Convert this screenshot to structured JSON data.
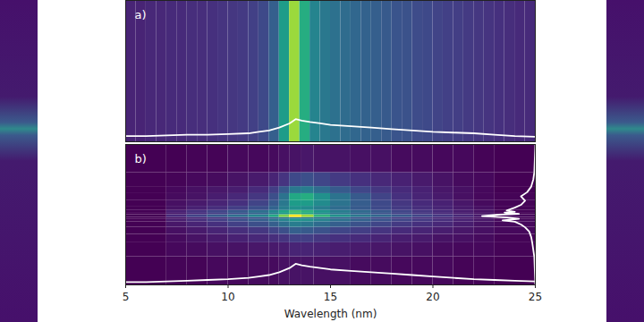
{
  "chart_data": [
    {
      "type": "heatmap",
      "title": "a)",
      "color": "viridis",
      "clim": [
        0,
        1
      ],
      "xlim": [
        5,
        25
      ],
      "ylim": [
        0,
        1
      ],
      "tick_labels": false,
      "bins": [
        5,
        5.5,
        6,
        6.5,
        7,
        7.5,
        8,
        8.5,
        9,
        9.5,
        10,
        10.5,
        11,
        11.5,
        12,
        12.5,
        13,
        13.5,
        14,
        14.5,
        15,
        15.5,
        16,
        16.5,
        17,
        17.5,
        18,
        18.5,
        19,
        19.5,
        20,
        20.5,
        21,
        21.5,
        22,
        22.5,
        23,
        23.5,
        24,
        24.5,
        25
      ],
      "cells": [
        0.1,
        0.1,
        0.11,
        0.11,
        0.12,
        0.12,
        0.13,
        0.13,
        0.14,
        0.15,
        0.16,
        0.17,
        0.19,
        0.22,
        0.3,
        0.55,
        0.85,
        0.62,
        0.45,
        0.4,
        0.37,
        0.35,
        0.33,
        0.31,
        0.3,
        0.28,
        0.26,
        0.25,
        0.23,
        0.22,
        0.2,
        0.19,
        0.18,
        0.17,
        0.16,
        0.15,
        0.14,
        0.13,
        0.12,
        0.12
      ],
      "lineout": {
        "color": "white",
        "x": [
          5,
          6,
          7,
          8,
          9,
          10,
          11,
          11.5,
          12,
          12.5,
          13,
          13.3,
          13.6,
          14,
          14.5,
          15,
          16,
          17,
          18,
          19,
          20,
          21,
          22,
          23,
          24,
          25
        ],
        "values": [
          0.04,
          0.04,
          0.045,
          0.05,
          0.05,
          0.055,
          0.06,
          0.07,
          0.08,
          0.1,
          0.13,
          0.16,
          0.15,
          0.14,
          0.13,
          0.12,
          0.11,
          0.1,
          0.09,
          0.08,
          0.07,
          0.065,
          0.06,
          0.05,
          0.04,
          0.035
        ]
      }
    },
    {
      "type": "heatmap",
      "title": "b)",
      "color": "viridis",
      "clim": [
        0,
        1
      ],
      "xlim": [
        5,
        25
      ],
      "ylim": [
        0,
        1
      ],
      "xticks": [
        5,
        10,
        15,
        20,
        25
      ],
      "x_label": "Wavelength (nm)",
      "tick_labels": "x",
      "bins": [
        5,
        7,
        8,
        9,
        10,
        11,
        12,
        12.5,
        13,
        13.6,
        14.2,
        15,
        16,
        17,
        18,
        19,
        20,
        21,
        22,
        23,
        25
      ],
      "y_bins": [
        0,
        0.2,
        0.3,
        0.36,
        0.41,
        0.45,
        0.47,
        0.48,
        0.5,
        0.51,
        0.53,
        0.56,
        0.6,
        0.65,
        0.7,
        0.8,
        1
      ],
      "cells": [
        [
          0,
          0.01,
          0.01,
          0.02,
          0.02,
          0.03,
          0.03,
          0.04,
          0.05,
          0.05,
          0.04,
          0.04,
          0.03,
          0.03,
          0.02,
          0.02,
          0.02,
          0.01,
          0.01,
          0
        ],
        [
          0,
          0.02,
          0.03,
          0.04,
          0.05,
          0.06,
          0.07,
          0.08,
          0.1,
          0.1,
          0.09,
          0.08,
          0.07,
          0.06,
          0.05,
          0.04,
          0.03,
          0.02,
          0.02,
          0.01
        ],
        [
          0,
          0.03,
          0.05,
          0.07,
          0.09,
          0.11,
          0.13,
          0.15,
          0.18,
          0.18,
          0.16,
          0.14,
          0.12,
          0.1,
          0.08,
          0.07,
          0.05,
          0.04,
          0.03,
          0.01
        ],
        [
          0,
          0.04,
          0.07,
          0.1,
          0.13,
          0.16,
          0.2,
          0.24,
          0.3,
          0.28,
          0.25,
          0.21,
          0.18,
          0.15,
          0.12,
          0.1,
          0.08,
          0.06,
          0.04,
          0.02
        ],
        [
          0,
          0.06,
          0.1,
          0.14,
          0.19,
          0.24,
          0.3,
          0.36,
          0.42,
          0.4,
          0.35,
          0.3,
          0.25,
          0.21,
          0.17,
          0.14,
          0.11,
          0.08,
          0.05,
          0.02
        ],
        [
          0,
          0.08,
          0.13,
          0.18,
          0.24,
          0.3,
          0.38,
          0.45,
          0.52,
          0.5,
          0.44,
          0.37,
          0.31,
          0.26,
          0.21,
          0.17,
          0.13,
          0.09,
          0.06,
          0.02
        ],
        [
          0,
          0.05,
          0.09,
          0.13,
          0.17,
          0.22,
          0.28,
          0.34,
          0.4,
          0.38,
          0.33,
          0.28,
          0.23,
          0.19,
          0.15,
          0.12,
          0.09,
          0.06,
          0.04,
          0.01
        ],
        [
          0,
          0.12,
          0.2,
          0.28,
          0.36,
          0.45,
          0.6,
          0.8,
          1,
          0.85,
          0.65,
          0.5,
          0.4,
          0.33,
          0.27,
          0.21,
          0.16,
          0.11,
          0.07,
          0.02
        ],
        [
          0,
          0.07,
          0.12,
          0.17,
          0.23,
          0.3,
          0.4,
          0.52,
          0.65,
          0.58,
          0.46,
          0.37,
          0.3,
          0.24,
          0.19,
          0.15,
          0.11,
          0.08,
          0.05,
          0.01
        ],
        [
          0,
          0.09,
          0.15,
          0.21,
          0.28,
          0.36,
          0.46,
          0.58,
          0.7,
          0.64,
          0.52,
          0.42,
          0.34,
          0.27,
          0.21,
          0.16,
          0.12,
          0.08,
          0.05,
          0.01
        ],
        [
          0,
          0.05,
          0.09,
          0.13,
          0.18,
          0.24,
          0.32,
          0.42,
          0.5,
          0.48,
          0.42,
          0.35,
          0.28,
          0.22,
          0.17,
          0.13,
          0.1,
          0.07,
          0.04,
          0.01
        ],
        [
          0,
          0.04,
          0.07,
          0.1,
          0.14,
          0.2,
          0.28,
          0.4,
          0.55,
          0.55,
          0.48,
          0.38,
          0.29,
          0.22,
          0.16,
          0.12,
          0.09,
          0.06,
          0.03,
          0.01
        ],
        [
          0,
          0.03,
          0.05,
          0.08,
          0.11,
          0.16,
          0.24,
          0.38,
          0.6,
          0.62,
          0.5,
          0.38,
          0.28,
          0.2,
          0.14,
          0.1,
          0.07,
          0.04,
          0.02,
          0.01
        ],
        [
          0,
          0.02,
          0.04,
          0.06,
          0.08,
          0.12,
          0.18,
          0.28,
          0.4,
          0.42,
          0.35,
          0.28,
          0.21,
          0.16,
          0.12,
          0.09,
          0.06,
          0.04,
          0.02,
          0
        ],
        [
          0,
          0.01,
          0.02,
          0.03,
          0.05,
          0.07,
          0.1,
          0.15,
          0.22,
          0.24,
          0.21,
          0.17,
          0.14,
          0.11,
          0.09,
          0.07,
          0.05,
          0.03,
          0.02,
          0
        ],
        [
          0,
          0,
          0.01,
          0.01,
          0.02,
          0.02,
          0.03,
          0.04,
          0.05,
          0.06,
          0.05,
          0.05,
          0.04,
          0.04,
          0.03,
          0.03,
          0.02,
          0.02,
          0.01,
          0
        ]
      ],
      "lineout": {
        "color": "white",
        "x": [
          5,
          6,
          7,
          8,
          9,
          10,
          11,
          11.5,
          12,
          12.5,
          13,
          13.3,
          13.6,
          14,
          14.5,
          15,
          16,
          17,
          18,
          19,
          20,
          21,
          22,
          23,
          24,
          25
        ],
        "values": [
          0.02,
          0.02,
          0.025,
          0.03,
          0.035,
          0.04,
          0.05,
          0.06,
          0.07,
          0.09,
          0.12,
          0.15,
          0.14,
          0.13,
          0.12,
          0.11,
          0.1,
          0.09,
          0.08,
          0.07,
          0.06,
          0.05,
          0.04,
          0.035,
          0.03,
          0.025
        ]
      },
      "profile": {
        "color": "white",
        "y": [
          1,
          0.8,
          0.75,
          0.7,
          0.66,
          0.63,
          0.6,
          0.57,
          0.55,
          0.53,
          0.52,
          0.515,
          0.505,
          0.5,
          0.49,
          0.48,
          0.47,
          0.46,
          0.45,
          0.43,
          0.41,
          0.38,
          0.34,
          0.3,
          0.2,
          0
        ],
        "x": [
          25,
          24.95,
          24.9,
          24.8,
          24.6,
          24.3,
          24.5,
          24.3,
          24,
          23.6,
          24,
          23.5,
          24.2,
          23.2,
          22.4,
          23.6,
          24.2,
          23.4,
          24,
          24.3,
          24.5,
          24.7,
          24.8,
          24.85,
          24.95,
          25
        ]
      }
    }
  ]
}
